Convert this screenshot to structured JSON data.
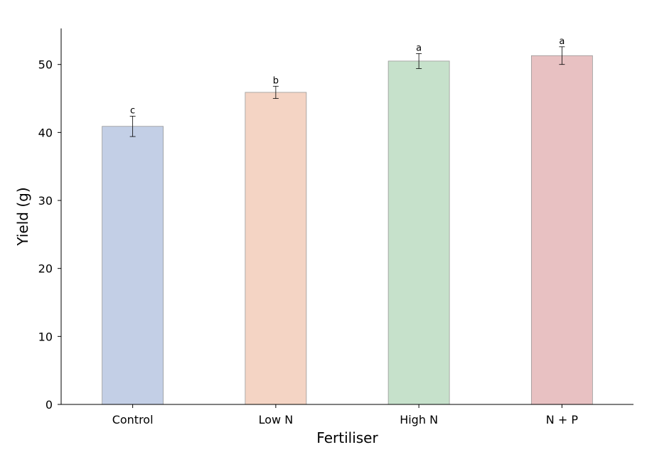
{
  "chart_data": {
    "type": "bar",
    "title": "",
    "xlabel": "Fertiliser",
    "ylabel": "Yield (g)",
    "categories": [
      "Control",
      "Low N",
      "High N",
      "N + P"
    ],
    "values": [
      40.9,
      45.9,
      50.5,
      51.3
    ],
    "errors": [
      1.5,
      0.9,
      1.1,
      1.3
    ],
    "significance": [
      "c",
      "b",
      "a",
      "a"
    ],
    "colors": [
      "#c3cfe6",
      "#f4d4c4",
      "#c6e1cb",
      "#e8c1c2"
    ],
    "edge_color": "#999999",
    "ylim": [
      0,
      55.3
    ],
    "yticks": [
      0,
      10,
      20,
      30,
      40,
      50
    ],
    "grid": false,
    "legend": "none"
  }
}
